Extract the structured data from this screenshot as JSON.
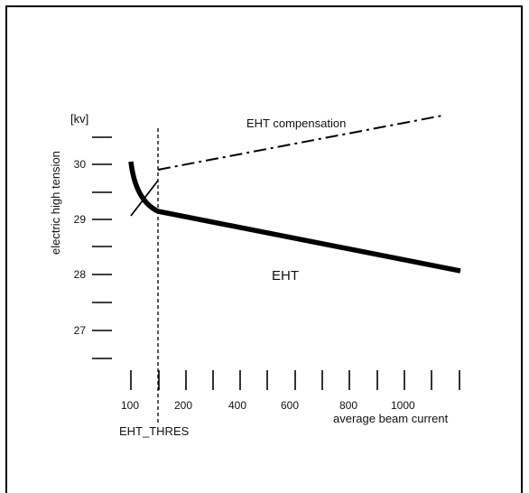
{
  "chart_data": {
    "type": "line",
    "title": "",
    "ylabel": "electric high tension",
    "yunit": "[kv]",
    "xlabel": "average beam current",
    "y_tick_labels": [
      "30",
      "29",
      "28",
      "27"
    ],
    "x_tick_labels": [
      "100",
      "200",
      "400",
      "600",
      "800",
      "1000"
    ],
    "threshold_label": "EHT_THRES",
    "series": [
      {
        "name": "EHT",
        "style": "solid-thick",
        "points": [
          [
            100,
            30.0
          ],
          [
            130,
            29.6
          ],
          [
            150,
            29.1
          ],
          [
            1250,
            28.1
          ]
        ]
      },
      {
        "name": "EHT compensation",
        "style": "dash-dot",
        "points": [
          [
            100,
            29.1
          ],
          [
            150,
            29.8
          ],
          [
            1200,
            30.9
          ]
        ]
      }
    ],
    "grid": false
  },
  "colors": {
    "line": "#000000",
    "background": "#ffffff"
  }
}
